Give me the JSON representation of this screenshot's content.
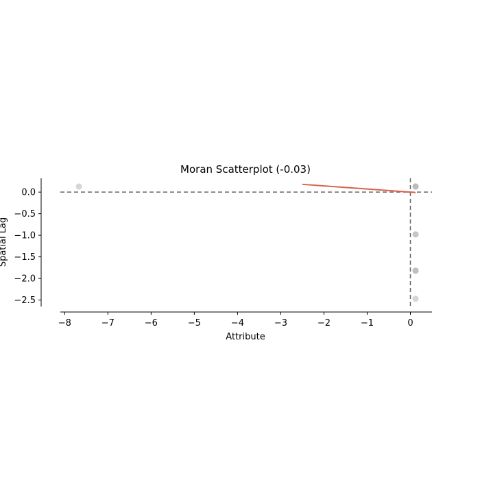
{
  "chart_data": {
    "type": "scatter",
    "title": "Moran Scatterplot (-0.03)",
    "xlabel": "Attribute",
    "ylabel": "Spatial Lag",
    "xlim": [
      -8.1,
      0.5
    ],
    "ylim": [
      -2.65,
      0.32
    ],
    "xticks": [
      -8,
      -7,
      -6,
      -5,
      -4,
      -3,
      -2,
      -1,
      0
    ],
    "yticks": [
      0.0,
      -0.5,
      -1.0,
      -1.5,
      -2.0,
      -2.5
    ],
    "grid": false,
    "points": [
      {
        "x": -7.67,
        "y": 0.13
      },
      {
        "x": 0.12,
        "y": 0.13
      },
      {
        "x": 0.12,
        "y": 0.13
      },
      {
        "x": 0.12,
        "y": 0.13
      },
      {
        "x": 0.12,
        "y": 0.13
      },
      {
        "x": 0.12,
        "y": -0.98
      },
      {
        "x": 0.12,
        "y": -0.98
      },
      {
        "x": 0.12,
        "y": -1.82
      },
      {
        "x": 0.12,
        "y": -1.82
      },
      {
        "x": 0.12,
        "y": -1.82
      },
      {
        "x": 0.12,
        "y": -2.47
      }
    ],
    "fit_line": {
      "x": [
        -2.5,
        0.12
      ],
      "y": [
        0.18,
        -0.01
      ]
    },
    "reference_lines": {
      "x": 0,
      "y": 0
    },
    "colors": {
      "points": "#bababa",
      "fit_line": "#d6604d",
      "reference": "#666666",
      "axis": "#000000"
    }
  }
}
